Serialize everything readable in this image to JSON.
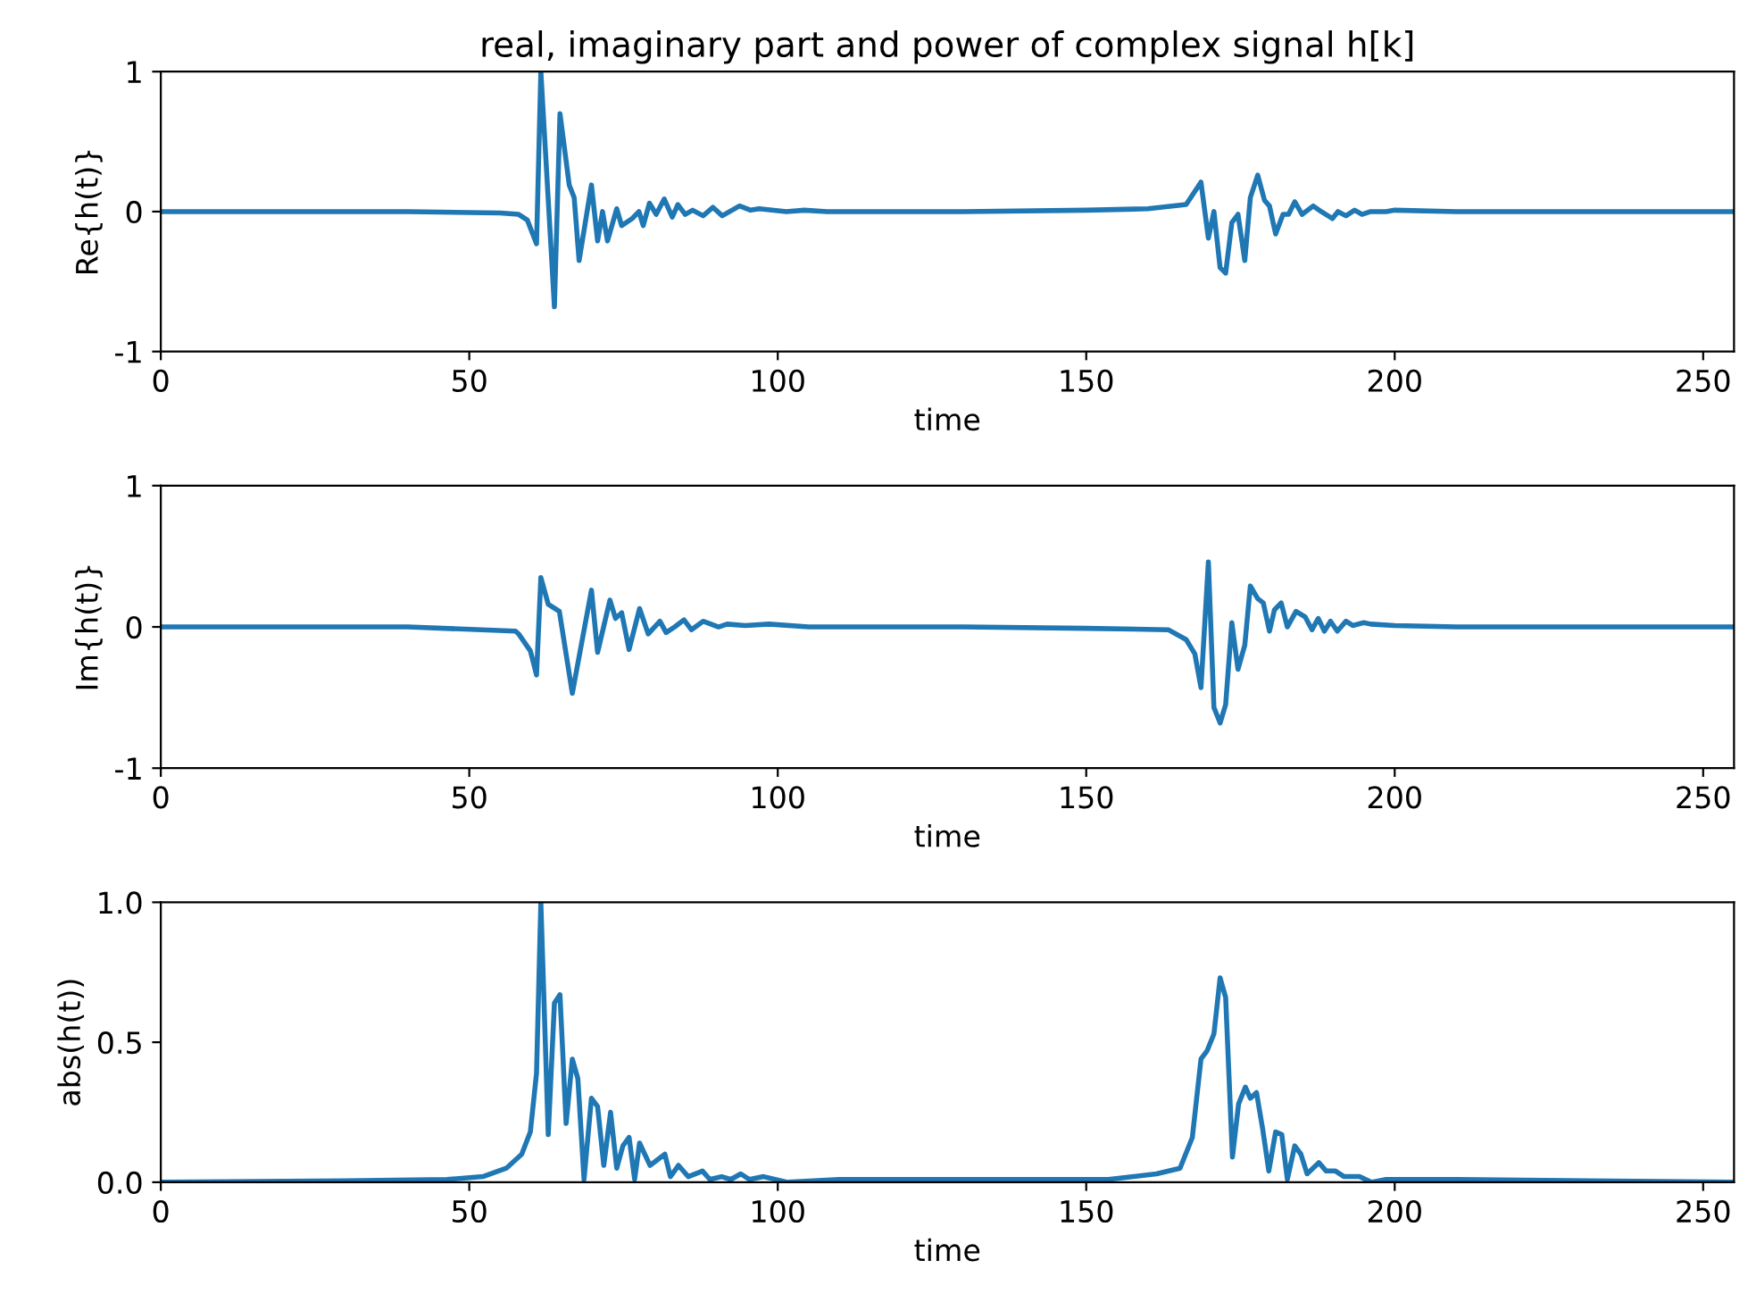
{
  "chart_data": [
    {
      "type": "line",
      "title": "real, imaginary part and power of complex signal h[k]",
      "xlabel": "time",
      "ylabel": "Re{h(t)}",
      "xlim": [
        0,
        255
      ],
      "xticks": [
        0,
        50,
        100,
        150,
        200,
        250
      ],
      "ylim": [
        -1,
        1
      ],
      "yticks": [
        -1,
        0,
        1
      ],
      "grid": false,
      "series": [
        {
          "color": "#1f77b4",
          "x": [
            0,
            40,
            55,
            58,
            59.4,
            60.9,
            61.6,
            63.8,
            64.7,
            66.2,
            67,
            67.8,
            69.8,
            70.8,
            71.6,
            72.4,
            73.9,
            74.7,
            76.4,
            77.5,
            78.2,
            79.2,
            80.3,
            81.6,
            82.9,
            83.8,
            85,
            86.2,
            87.9,
            89.5,
            91,
            93.8,
            95.6,
            97,
            101.4,
            104.3,
            108,
            130,
            150,
            160,
            166.2,
            168.6,
            169.8,
            170.7,
            171.7,
            172.6,
            173.6,
            174.6,
            175.7,
            176.6,
            177.8,
            178.9,
            179.7,
            180.7,
            181.9,
            182.8,
            183.8,
            185,
            186.8,
            188.1,
            189.9,
            190.8,
            192.1,
            193.5,
            194.7,
            196.1,
            198.6,
            200,
            210,
            230,
            255
          ],
          "values": [
            0,
            0,
            -0.01,
            -0.02,
            -0.06,
            -0.23,
            1.0,
            -0.68,
            0.7,
            0.19,
            0.1,
            -0.35,
            0.19,
            -0.21,
            0.0,
            -0.21,
            0.02,
            -0.1,
            -0.05,
            0,
            -0.1,
            0.06,
            -0.02,
            0.09,
            -0.04,
            0.05,
            -0.02,
            0.01,
            -0.03,
            0.03,
            -0.03,
            0.04,
            0.01,
            0.02,
            0,
            0.01,
            0,
            0,
            0.01,
            0.02,
            0.05,
            0.21,
            -0.19,
            0,
            -0.4,
            -0.44,
            -0.08,
            -0.02,
            -0.35,
            0.1,
            0.26,
            0.08,
            0.04,
            -0.16,
            -0.02,
            -0.02,
            0.07,
            -0.02,
            0.04,
            0,
            -0.05,
            0,
            -0.03,
            0.01,
            -0.02,
            0,
            0,
            0.01,
            0,
            0,
            0
          ]
        }
      ]
    },
    {
      "type": "line",
      "xlabel": "time",
      "ylabel": "Im{h(t)}",
      "xlim": [
        0,
        255
      ],
      "xticks": [
        0,
        50,
        100,
        150,
        200,
        250
      ],
      "ylim": [
        -1,
        1
      ],
      "yticks": [
        -1,
        0,
        1
      ],
      "grid": false,
      "series": [
        {
          "color": "#1f77b4",
          "x": [
            0,
            40,
            57.5,
            58,
            59.9,
            60.9,
            61.6,
            62.8,
            64.6,
            66.7,
            69.8,
            70.8,
            72.8,
            73.7,
            74.7,
            75.9,
            77.6,
            79,
            80.9,
            81.9,
            83.3,
            84.8,
            86,
            87.9,
            90.4,
            91.8,
            94.7,
            98.6,
            105,
            130,
            150,
            163.3,
            166.2,
            167.6,
            168.6,
            169.8,
            170.7,
            171.7,
            172.6,
            173.6,
            174.6,
            175.7,
            176.6,
            177.8,
            178.7,
            179.7,
            180.5,
            181.6,
            182.6,
            184,
            185.5,
            186.6,
            187.6,
            188.6,
            189.6,
            190.7,
            192.1,
            193.2,
            195,
            196.1,
            200,
            210,
            230,
            255
          ],
          "values": [
            0,
            0,
            -0.03,
            -0.05,
            -0.17,
            -0.34,
            0.35,
            0.16,
            0.11,
            -0.47,
            0.26,
            -0.18,
            0.19,
            0.06,
            0.1,
            -0.16,
            0.13,
            -0.05,
            0.04,
            -0.04,
            0,
            0.05,
            -0.02,
            0.04,
            0,
            0.02,
            0.01,
            0.02,
            0,
            0,
            -0.01,
            -0.02,
            -0.09,
            -0.19,
            -0.43,
            0.46,
            -0.57,
            -0.68,
            -0.55,
            0.03,
            -0.3,
            -0.13,
            0.29,
            0.2,
            0.17,
            -0.03,
            0.12,
            0.17,
            0,
            0.11,
            0.07,
            -0.02,
            0.06,
            -0.03,
            0.04,
            -0.03,
            0.04,
            0.01,
            0.03,
            0.02,
            0.01,
            0,
            0,
            0
          ]
        }
      ]
    },
    {
      "type": "line",
      "xlabel": "time",
      "ylabel": "abs(h(t))",
      "xlim": [
        0,
        255
      ],
      "xticks": [
        0,
        50,
        100,
        150,
        200,
        250
      ],
      "ylim": [
        0,
        1
      ],
      "yticks": [
        {
          "value": 0,
          "label": "0.0"
        },
        {
          "value": 0.5,
          "label": "0.5"
        },
        {
          "value": 1,
          "label": "1.0"
        }
      ],
      "grid": false,
      "series": [
        {
          "color": "#1f77b4",
          "x": [
            0,
            30,
            46.4,
            52.2,
            56,
            58.5,
            59.9,
            60.9,
            61.6,
            62.8,
            63.8,
            64.7,
            65.7,
            66.7,
            67.6,
            68.6,
            69.8,
            70.8,
            71.8,
            72.9,
            73.9,
            74.9,
            75.9,
            76.8,
            77.6,
            79.3,
            81.7,
            82.6,
            83.9,
            85.5,
            87.8,
            89,
            90.9,
            92.4,
            94,
            95.4,
            97.7,
            101.6,
            110,
            130,
            153.6,
            161.4,
            165.2,
            167.2,
            168.6,
            169.6,
            170.7,
            171.7,
            172.6,
            173.7,
            174.7,
            175.8,
            176.6,
            177.6,
            178.6,
            179.6,
            180.7,
            181.7,
            182.6,
            183.8,
            184.8,
            185.8,
            187.7,
            188.9,
            190.4,
            191.8,
            194.3,
            196.2,
            198.6,
            210,
            255
          ],
          "values": [
            0,
            0.005,
            0.01,
            0.02,
            0.05,
            0.1,
            0.18,
            0.39,
            1.0,
            0.17,
            0.64,
            0.67,
            0.21,
            0.44,
            0.37,
            0.01,
            0.3,
            0.27,
            0.06,
            0.25,
            0.05,
            0.13,
            0.16,
            0.01,
            0.14,
            0.06,
            0.1,
            0.02,
            0.06,
            0.02,
            0.04,
            0.01,
            0.02,
            0.01,
            0.03,
            0.01,
            0.02,
            0,
            0.01,
            0.01,
            0.01,
            0.03,
            0.05,
            0.16,
            0.44,
            0.47,
            0.53,
            0.73,
            0.66,
            0.09,
            0.28,
            0.34,
            0.3,
            0.32,
            0.19,
            0.04,
            0.18,
            0.17,
            0.01,
            0.13,
            0.1,
            0.03,
            0.07,
            0.04,
            0.04,
            0.02,
            0.02,
            0,
            0.01,
            0.01,
            0
          ]
        }
      ]
    }
  ]
}
